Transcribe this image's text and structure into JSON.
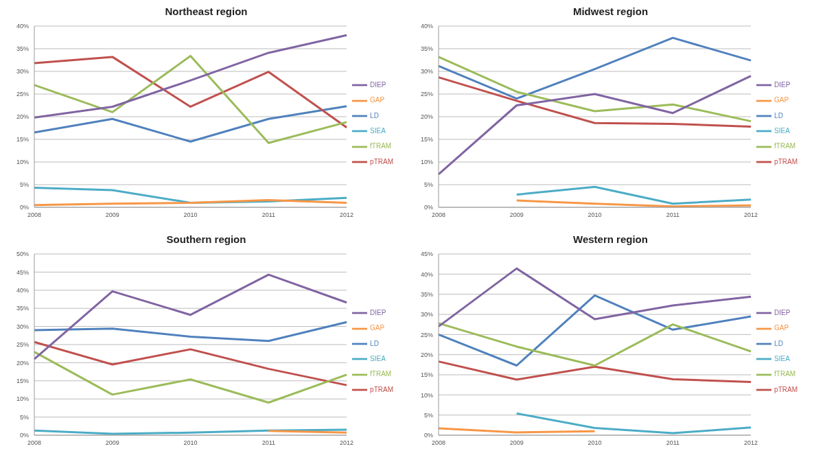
{
  "chart_data": [
    {
      "type": "line",
      "title": "Northeast region",
      "categories": [
        "2008",
        "2009",
        "2010",
        "2011",
        "2012"
      ],
      "ylim": [
        0,
        40
      ],
      "yticks": [
        {
          "value": 0,
          "label": "0%"
        },
        {
          "value": 5,
          "label": "5%"
        },
        {
          "value": 10,
          "label": "10%"
        },
        {
          "value": 15,
          "label": "15%"
        },
        {
          "value": 20,
          "label": "20%"
        },
        {
          "value": 25,
          "label": "25%"
        },
        {
          "value": 30,
          "label": "30%"
        },
        {
          "value": 35,
          "label": "35%"
        },
        {
          "value": 40,
          "label": "40%"
        }
      ],
      "grid": "y",
      "legend": "right",
      "marker": "none",
      "series": [
        {
          "name": "LD",
          "color": "#4f81bd",
          "values": [
            16.5,
            19.5,
            14.5,
            19.5,
            22.3
          ]
        },
        {
          "name": "pTRAM",
          "color": "#c0504d",
          "values": [
            31.8,
            33.2,
            22.2,
            29.9,
            17.6
          ]
        },
        {
          "name": "fTRAM",
          "color": "#9bbb59",
          "values": [
            27,
            21,
            33.4,
            14.2,
            18.8
          ]
        },
        {
          "name": "DIEP",
          "color": "#8064a2",
          "values": [
            19.8,
            22.2,
            28,
            34.1,
            38
          ]
        },
        {
          "name": "SIEA",
          "color": "#4bacc6",
          "values": [
            4.3,
            3.8,
            1,
            1.3,
            2.1
          ]
        },
        {
          "name": "GAP",
          "color": "#f79646",
          "values": [
            0.5,
            0.8,
            1,
            1.6,
            1
          ]
        }
      ]
    },
    {
      "type": "line",
      "title": "Midwest region",
      "categories": [
        "2008",
        "2009",
        "2010",
        "2011",
        "2012"
      ],
      "ylim": [
        0,
        40
      ],
      "yticks": [
        {
          "value": 0,
          "label": "0%"
        },
        {
          "value": 5,
          "label": "5%"
        },
        {
          "value": 10,
          "label": "10%"
        },
        {
          "value": 15,
          "label": "15%"
        },
        {
          "value": 20,
          "label": "20%"
        },
        {
          "value": 25,
          "label": "25%"
        },
        {
          "value": 30,
          "label": "30%"
        },
        {
          "value": 35,
          "label": "35%"
        },
        {
          "value": 40,
          "label": "40%"
        }
      ],
      "grid": "y",
      "legend": "right",
      "marker": "none",
      "series": [
        {
          "name": "LD",
          "color": "#4f81bd",
          "values": [
            31.2,
            24,
            30.5,
            37.4,
            32.4
          ]
        },
        {
          "name": "pTRAM",
          "color": "#c0504d",
          "values": [
            28.7,
            23.5,
            18.6,
            18.4,
            17.8
          ]
        },
        {
          "name": "fTRAM",
          "color": "#9bbb59",
          "values": [
            33.2,
            25.5,
            21.2,
            22.7,
            19
          ]
        },
        {
          "name": "DIEP",
          "color": "#8064a2",
          "values": [
            7.3,
            22.5,
            25,
            20.8,
            29
          ]
        },
        {
          "name": "SIEA",
          "color": "#4bacc6",
          "values": [
            null,
            2.8,
            4.5,
            0.8,
            1.7
          ]
        },
        {
          "name": "GAP",
          "color": "#f79646",
          "values": [
            null,
            1.5,
            0.8,
            0.2,
            0.4
          ]
        }
      ]
    },
    {
      "type": "line",
      "title": "Southern region",
      "categories": [
        "2008",
        "2009",
        "2010",
        "2011",
        "2012"
      ],
      "ylim": [
        0,
        50
      ],
      "yticks": [
        {
          "value": 0,
          "label": "0%"
        },
        {
          "value": 5,
          "label": "5%"
        },
        {
          "value": 10,
          "label": "10%"
        },
        {
          "value": 15,
          "label": "15%"
        },
        {
          "value": 20,
          "label": "20%"
        },
        {
          "value": 25,
          "label": "25%"
        },
        {
          "value": 30,
          "label": "30%"
        },
        {
          "value": 35,
          "label": "35%"
        },
        {
          "value": 40,
          "label": "40%"
        },
        {
          "value": 45,
          "label": "45%"
        },
        {
          "value": 50,
          "label": "50%"
        }
      ],
      "grid": "y",
      "legend": "right",
      "marker": "none",
      "series": [
        {
          "name": "LD",
          "color": "#4f81bd",
          "values": [
            29,
            29.4,
            27.2,
            26,
            31.2
          ]
        },
        {
          "name": "pTRAM",
          "color": "#c0504d",
          "values": [
            25.7,
            19.5,
            23.7,
            18.3,
            13.8
          ]
        },
        {
          "name": "fTRAM",
          "color": "#9bbb59",
          "values": [
            23,
            11.2,
            15.4,
            9,
            16.7
          ]
        },
        {
          "name": "DIEP",
          "color": "#8064a2",
          "values": [
            21,
            39.7,
            33.2,
            44.3,
            36.6
          ]
        },
        {
          "name": "SIEA",
          "color": "#4bacc6",
          "values": [
            1.3,
            0.4,
            0.7,
            1.3,
            1.5
          ]
        },
        {
          "name": "GAP",
          "color": "#f79646",
          "values": [
            null,
            null,
            null,
            1.2,
            0.7
          ]
        }
      ]
    },
    {
      "type": "line",
      "title": "Western region",
      "categories": [
        "2008",
        "2009",
        "2010",
        "2011",
        "2012"
      ],
      "ylim": [
        0,
        45
      ],
      "yticks": [
        {
          "value": 0,
          "label": "0%"
        },
        {
          "value": 5,
          "label": "5%"
        },
        {
          "value": 10,
          "label": "10%"
        },
        {
          "value": 15,
          "label": "15%"
        },
        {
          "value": 20,
          "label": "20%"
        },
        {
          "value": 25,
          "label": "25%"
        },
        {
          "value": 30,
          "label": "30%"
        },
        {
          "value": 35,
          "label": "35%"
        },
        {
          "value": 40,
          "label": "40%"
        },
        {
          "value": 45,
          "label": "45%"
        }
      ],
      "grid": "y",
      "legend": "right",
      "marker": "none",
      "series": [
        {
          "name": "LD",
          "color": "#4f81bd",
          "values": [
            25,
            17.3,
            34.7,
            26.2,
            29.5
          ]
        },
        {
          "name": "pTRAM",
          "color": "#c0504d",
          "values": [
            18.3,
            13.8,
            17,
            13.9,
            13.2
          ]
        },
        {
          "name": "fTRAM",
          "color": "#9bbb59",
          "values": [
            27.8,
            22,
            17.3,
            27.5,
            20.8
          ]
        },
        {
          "name": "DIEP",
          "color": "#8064a2",
          "values": [
            27,
            41.4,
            28.8,
            32.2,
            34.4
          ]
        },
        {
          "name": "SIEA",
          "color": "#4bacc6",
          "values": [
            null,
            5.4,
            1.8,
            0.5,
            1.9
          ]
        },
        {
          "name": "GAP",
          "color": "#f79646",
          "values": [
            1.7,
            0.7,
            1,
            null,
            null
          ]
        }
      ]
    }
  ]
}
